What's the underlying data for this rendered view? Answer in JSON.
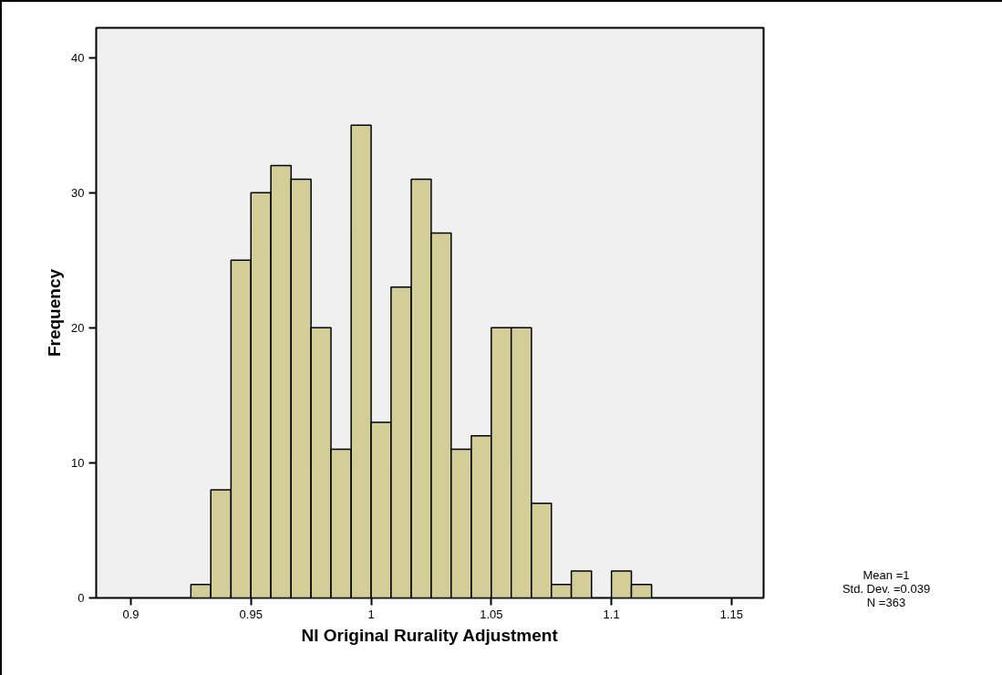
{
  "chart_data": {
    "type": "histogram",
    "xlabel": "NI Original Rurality Adjustment",
    "ylabel": "Frequency",
    "bins": [
      0.925,
      0.9333,
      0.9417,
      0.95,
      0.9583,
      0.9667,
      0.975,
      0.9833,
      0.9917,
      1.0,
      1.0083,
      1.0167,
      1.025,
      1.0333,
      1.0417,
      1.05,
      1.0583,
      1.0667,
      1.075,
      1.0833,
      1.0917,
      1.1,
      1.1083,
      1.1167
    ],
    "values": [
      1,
      8,
      25,
      30,
      32,
      31,
      20,
      11,
      35,
      13,
      23,
      31,
      27,
      11,
      12,
      20,
      20,
      7,
      1,
      2,
      0,
      2,
      1
    ],
    "color": "#d3ce97",
    "xlim": [
      0.8856,
      1.1633
    ],
    "xticks": [
      0.9,
      0.95,
      1,
      1.05,
      1.1,
      1.15
    ],
    "ylim": [
      0,
      42.2
    ],
    "yticks": [
      0,
      10,
      20,
      30,
      40
    ],
    "grid": false,
    "annotations": [
      "Mean =1",
      "Std. Dev. =0.039",
      "N =363"
    ]
  }
}
